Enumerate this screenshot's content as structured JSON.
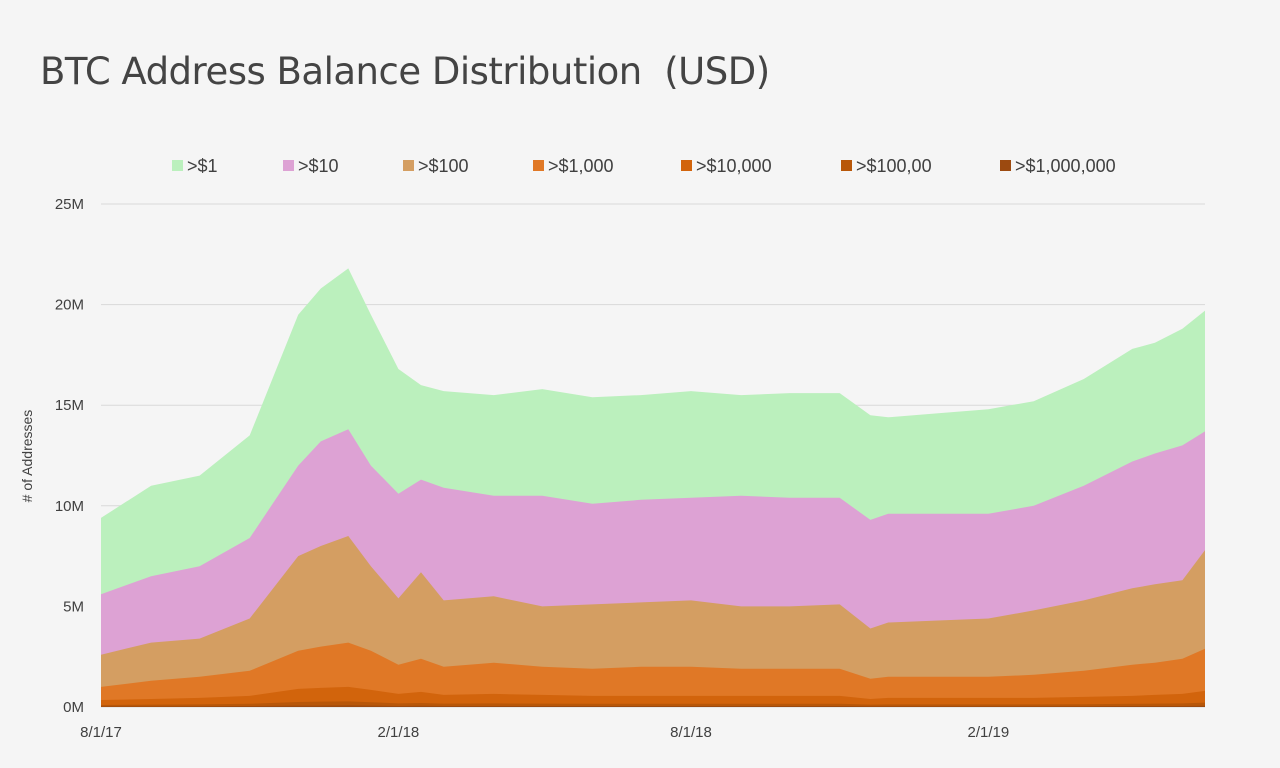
{
  "title": "BTC Address Balance Distribution  (USD)",
  "chart_data": {
    "type": "area",
    "stacked": false,
    "title": "BTC Address Balance Distribution  (USD)",
    "xlabel": "",
    "ylabel": "# of Addresses",
    "ylim": [
      0,
      25000000
    ],
    "yticks": [
      "0M",
      "5M",
      "10M",
      "15M",
      "20M",
      "25M"
    ],
    "xticks": [
      "8/1/17",
      "2/1/18",
      "8/1/18",
      "2/1/19"
    ],
    "grid": true,
    "legend_position": "top",
    "x": [
      "2017-08-01",
      "2017-09-01",
      "2017-10-01",
      "2017-11-01",
      "2017-12-01",
      "2017-12-15",
      "2018-01-01",
      "2018-01-15",
      "2018-02-01",
      "2018-02-15",
      "2018-03-01",
      "2018-04-01",
      "2018-05-01",
      "2018-06-01",
      "2018-07-01",
      "2018-08-01",
      "2018-09-01",
      "2018-10-01",
      "2018-11-01",
      "2018-11-20",
      "2018-12-01",
      "2019-01-01",
      "2019-02-01",
      "2019-03-01",
      "2019-04-01",
      "2019-05-01",
      "2019-05-15",
      "2019-06-01",
      "2019-06-15"
    ],
    "series": [
      {
        "name": ">$1",
        "color": "#bbf0bd",
        "values": [
          9.4,
          11.0,
          11.5,
          13.5,
          19.5,
          20.8,
          21.8,
          19.5,
          16.8,
          16.0,
          15.7,
          15.5,
          15.8,
          15.4,
          15.5,
          15.7,
          15.5,
          15.6,
          15.6,
          14.5,
          14.4,
          14.6,
          14.8,
          15.2,
          16.3,
          17.8,
          18.1,
          18.8,
          19.7
        ]
      },
      {
        "name": ">$10",
        "color": "#dda2d4",
        "values": [
          5.6,
          6.5,
          7.0,
          8.4,
          12.0,
          13.2,
          13.8,
          12.0,
          10.6,
          11.3,
          10.9,
          10.5,
          10.5,
          10.1,
          10.3,
          10.4,
          10.5,
          10.4,
          10.4,
          9.3,
          9.6,
          9.6,
          9.6,
          10.0,
          11.0,
          12.2,
          12.6,
          13.0,
          13.7
        ]
      },
      {
        "name": ">$100",
        "color": "#d49e62",
        "values": [
          2.6,
          3.2,
          3.4,
          4.4,
          7.5,
          8.0,
          8.5,
          7.0,
          5.4,
          6.7,
          5.3,
          5.5,
          5.0,
          5.1,
          5.2,
          5.3,
          5.0,
          5.0,
          5.1,
          3.9,
          4.2,
          4.3,
          4.4,
          4.8,
          5.3,
          5.9,
          6.1,
          6.3,
          7.8
        ]
      },
      {
        "name": ">$1,000",
        "color": "#e07826",
        "values": [
          1.0,
          1.3,
          1.5,
          1.8,
          2.8,
          3.0,
          3.2,
          2.8,
          2.1,
          2.4,
          2.0,
          2.2,
          2.0,
          1.9,
          2.0,
          2.0,
          1.9,
          1.9,
          1.9,
          1.4,
          1.5,
          1.5,
          1.5,
          1.6,
          1.8,
          2.1,
          2.2,
          2.4,
          2.9
        ]
      },
      {
        "name": ">$10,000",
        "color": "#d2640c",
        "values": [
          0.35,
          0.4,
          0.45,
          0.55,
          0.9,
          0.95,
          1.0,
          0.85,
          0.65,
          0.75,
          0.6,
          0.65,
          0.6,
          0.55,
          0.55,
          0.55,
          0.55,
          0.55,
          0.55,
          0.4,
          0.45,
          0.45,
          0.45,
          0.45,
          0.5,
          0.55,
          0.6,
          0.65,
          0.8
        ]
      },
      {
        "name": ">$100,00",
        "color": "#b85709",
        "values": [
          0.1,
          0.12,
          0.13,
          0.16,
          0.25,
          0.27,
          0.28,
          0.24,
          0.18,
          0.2,
          0.17,
          0.18,
          0.17,
          0.16,
          0.16,
          0.16,
          0.16,
          0.16,
          0.16,
          0.12,
          0.13,
          0.13,
          0.13,
          0.13,
          0.14,
          0.16,
          0.17,
          0.18,
          0.22
        ]
      },
      {
        "name": ">$1,000,000",
        "color": "#9c4a10",
        "values": [
          0.03,
          0.03,
          0.04,
          0.05,
          0.07,
          0.07,
          0.08,
          0.07,
          0.05,
          0.06,
          0.05,
          0.05,
          0.05,
          0.05,
          0.05,
          0.05,
          0.05,
          0.05,
          0.05,
          0.04,
          0.04,
          0.04,
          0.04,
          0.04,
          0.04,
          0.05,
          0.05,
          0.05,
          0.06
        ]
      }
    ],
    "value_unit": "millions of addresses"
  }
}
